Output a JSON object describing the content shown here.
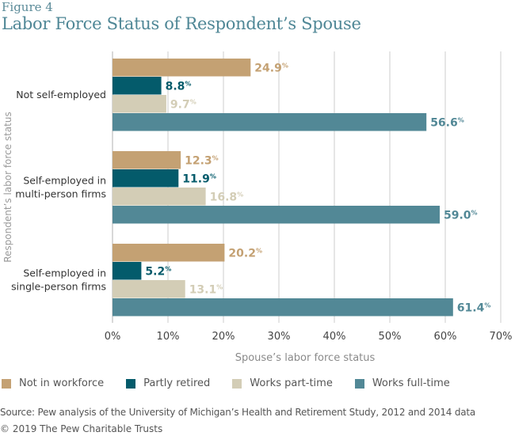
{
  "figure_label": "Figure 4",
  "title": "Labor Force Status of Respondent’s Spouse",
  "chart_data": {
    "type": "bar",
    "orientation": "horizontal",
    "title": "Labor Force Status of Respondent’s Spouse",
    "xlabel": "Spouse’s labor force status",
    "ylabel": "Respondent’s labor force status",
    "xlim": [
      0,
      70
    ],
    "x_ticks": [
      "0%",
      "10%",
      "20%",
      "30%",
      "40%",
      "50%",
      "60%",
      "70%"
    ],
    "grid": true,
    "legend_position": "bottom",
    "categories": [
      [
        "Not self-employed"
      ],
      [
        "Self-employed in",
        "multi-person firms"
      ],
      [
        "Self-employed in",
        "single-person firms"
      ]
    ],
    "series": [
      {
        "name": "Not in workforce",
        "color": "#c4a173",
        "label_color": "#c4a173",
        "values": [
          24.9,
          12.3,
          20.2
        ]
      },
      {
        "name": "Partly retired",
        "color": "#045b6b",
        "label_color": "#045b6b",
        "values": [
          8.8,
          11.9,
          5.2
        ]
      },
      {
        "name": "Works part-time",
        "color": "#d3cdb6",
        "label_color": "#d3cdb6",
        "values": [
          9.7,
          16.8,
          13.1
        ]
      },
      {
        "name": "Works full-time",
        "color": "#528896",
        "label_color": "#528896",
        "values": [
          56.6,
          59.0,
          61.4
        ]
      }
    ],
    "value_suffix": "%"
  },
  "legend": [
    {
      "label": "Not in workforce",
      "color": "#c4a173"
    },
    {
      "label": "Partly retired",
      "color": "#045b6b"
    },
    {
      "label": "Works part-time",
      "color": "#d3cdb6"
    },
    {
      "label": "Works full-time",
      "color": "#528896"
    }
  ],
  "source": "Source: Pew analysis of the University of Michigan’s Health and Retirement Study, 2012 and 2014 data",
  "copyright": "© 2019 The Pew Charitable Trusts"
}
